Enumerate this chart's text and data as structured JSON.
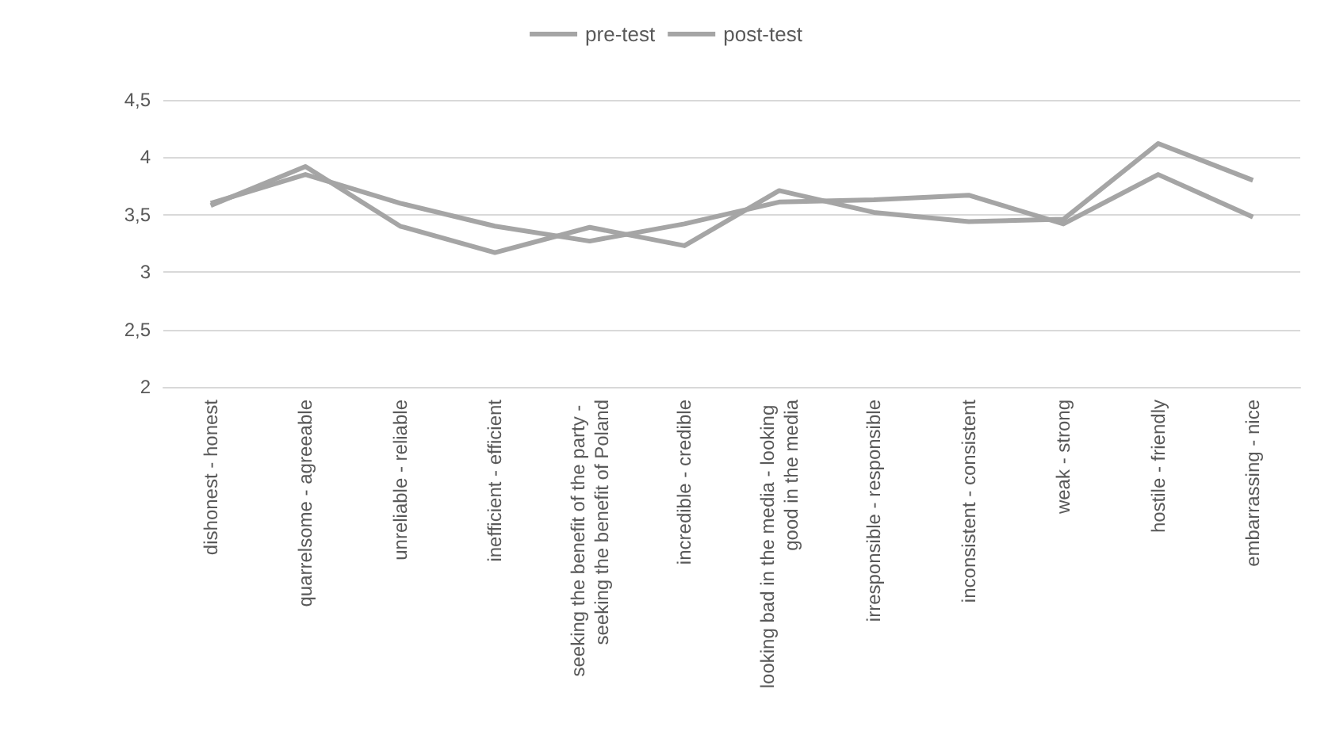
{
  "chart_data": {
    "type": "line",
    "categories": [
      "dishonest - honest",
      "quarrelsome - agreeable",
      "unreliable - reliable",
      "inefficient - efficient",
      "seeking the benefit of the party - seeking the benefit of Poland",
      "incredible - credible",
      "looking bad in the media - looking good in the media",
      "irresponsible - responsible",
      "inconsistent - consistent",
      "weak - strong",
      "hostile - friendly",
      "embarrassing - nice"
    ],
    "series": [
      {
        "name": "pre-test",
        "color": "#a5a5a5",
        "values": [
          3.6,
          3.85,
          3.6,
          3.4,
          3.27,
          3.42,
          3.61,
          3.63,
          3.67,
          3.42,
          3.85,
          3.48
        ]
      },
      {
        "name": "post-test",
        "color": "#a5a5a5",
        "values": [
          3.58,
          3.92,
          3.4,
          3.17,
          3.39,
          3.23,
          3.71,
          3.52,
          3.44,
          3.46,
          4.12,
          3.8
        ]
      }
    ],
    "ylim": [
      2,
      4.5
    ],
    "yticks": [
      2,
      {
        "value": 2.5,
        "label": "2,5"
      },
      3,
      {
        "value": 3.5,
        "label": "3,5"
      },
      4,
      {
        "value": 4.5,
        "label": "4,5"
      }
    ],
    "grid": "y",
    "legend": "top",
    "marker": "none",
    "line_style": "solid"
  }
}
